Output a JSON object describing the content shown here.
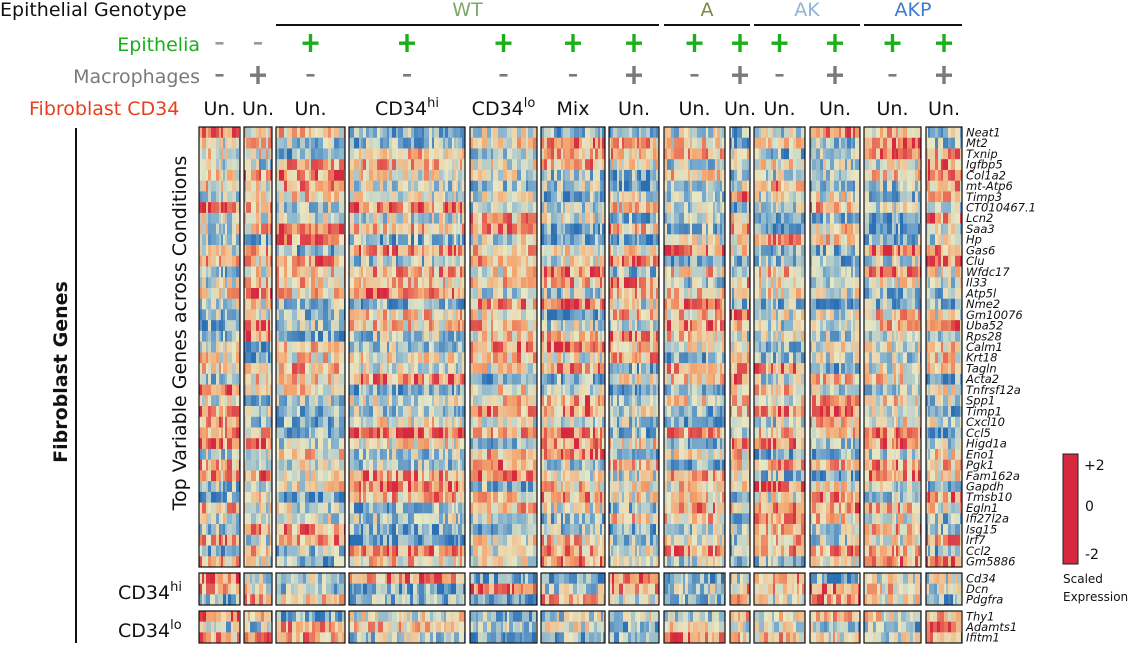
{
  "chart_data": {
    "type": "heatmap",
    "row_headers": {
      "genotype": "Epithelial Genotype",
      "epithelia": "Epithelia",
      "macrophages": "Macrophages",
      "fibroblast": "Fibroblast CD34"
    },
    "genotype_groups": [
      {
        "name": "WT",
        "color": "#7fa86a",
        "cols": [
          2,
          6
        ]
      },
      {
        "name": "A",
        "color": "#7f8a45",
        "cols": [
          7,
          8
        ]
      },
      {
        "name": "AK",
        "color": "#8fb3d9",
        "cols": [
          9,
          10
        ]
      },
      {
        "name": "AKP",
        "color": "#3b7bd0",
        "cols": [
          11,
          12
        ]
      }
    ],
    "columns": [
      {
        "epithelia": "-",
        "macrophages": "-",
        "cd34": "Un.",
        "cd34_sup": ""
      },
      {
        "epithelia": "-",
        "macrophages": "+",
        "cd34": "Un.",
        "cd34_sup": ""
      },
      {
        "epithelia": "+",
        "macrophages": "-",
        "cd34": "Un.",
        "cd34_sup": ""
      },
      {
        "epithelia": "+",
        "macrophages": "-",
        "cd34": "CD34",
        "cd34_sup": "hi"
      },
      {
        "epithelia": "+",
        "macrophages": "-",
        "cd34": "CD34",
        "cd34_sup": "lo"
      },
      {
        "epithelia": "+",
        "macrophages": "-",
        "cd34": "Mix",
        "cd34_sup": ""
      },
      {
        "epithelia": "+",
        "macrophages": "+",
        "cd34": "Un.",
        "cd34_sup": ""
      },
      {
        "epithelia": "+",
        "macrophages": "-",
        "cd34": "Un.",
        "cd34_sup": ""
      },
      {
        "epithelia": "+",
        "macrophages": "+",
        "cd34": "Un.",
        "cd34_sup": ""
      },
      {
        "epithelia": "+",
        "macrophages": "-",
        "cd34": "Un.",
        "cd34_sup": ""
      },
      {
        "epithelia": "+",
        "macrophages": "+",
        "cd34": "Un.",
        "cd34_sup": ""
      },
      {
        "epithelia": "+",
        "macrophages": "-",
        "cd34": "Un.",
        "cd34_sup": ""
      },
      {
        "epithelia": "+",
        "macrophages": "+",
        "cd34": "Un.",
        "cd34_sup": ""
      }
    ],
    "genes_main": [
      "Neat1",
      "Mt2",
      "Txnip",
      "Igfbp5",
      "Col1a2",
      "mt-Atp6",
      "Timp3",
      "CT010467.1",
      "Lcn2",
      "Saa3",
      "Hp",
      "Gas6",
      "Clu",
      "Wfdc17",
      "Il33",
      "Atp5l",
      "Nme2",
      "Gm10076",
      "Uba52",
      "Rps28",
      "Calm1",
      "Krt18",
      "Tagln",
      "Acta2",
      "Tnfrsf12a",
      "Spp1",
      "Timp1",
      "Cxcl10",
      "Ccl5",
      "Higd1a",
      "Eno1",
      "Pgk1",
      "Fam162a",
      "Gapdh",
      "Tmsb10",
      "Egln1",
      "Ifi27l2a",
      "Isg15",
      "Irf7",
      "Ccl2",
      "Gm5886"
    ],
    "genes_cd34hi": [
      "Cd34",
      "Dcn",
      "Pdgfra"
    ],
    "genes_cd34lo": [
      "Thy1",
      "Adamts1",
      "Ifitm1"
    ],
    "left_labels": {
      "axis_title": "Top Variable Genes across Conditions",
      "fibroblast_genes": "Fibroblast Genes",
      "cd34hi_base": "CD34",
      "cd34hi_sup": "hi",
      "cd34lo_base": "CD34",
      "cd34lo_sup": "lo"
    },
    "colorbar": {
      "ticks": [
        "+2",
        "0",
        "-2"
      ],
      "range": [
        -2,
        2
      ],
      "title_line1": "Scaled",
      "title_line2": "Expression"
    },
    "colors": {
      "high": "#d6283f",
      "mid": "#e8e8c4",
      "low": "#2b6fb5",
      "epithelia_plus": "#19b019",
      "macrophage_mark": "#7a7a7a",
      "fibroblast_label": "#e8401c"
    },
    "grid": false
  }
}
